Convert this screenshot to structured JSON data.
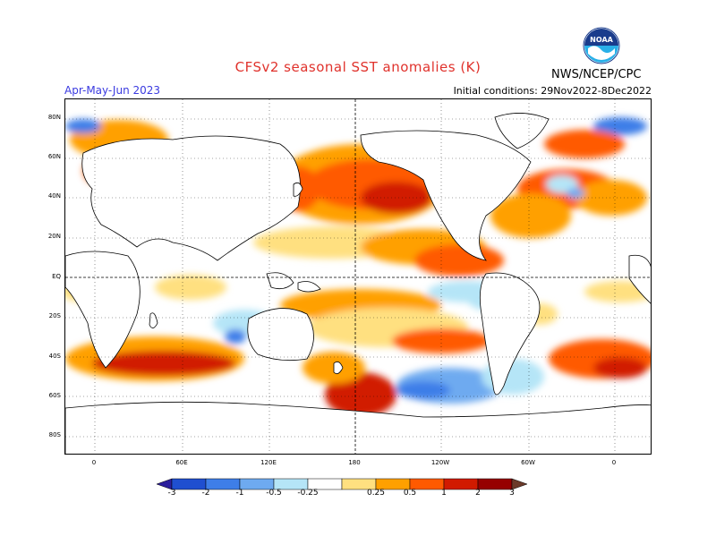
{
  "header": {
    "title": "CFSv2 seasonal SST anomalies (K)",
    "season": "Apr-May-Jun 2023",
    "initial_conditions": "Initial conditions: 29Nov2022-8Dec2022",
    "agency": "NWS/NCEP/CPC",
    "logo_text": "NOAA"
  },
  "axes": {
    "lat_labels": [
      "80N",
      "60N",
      "40N",
      "20N",
      "EQ",
      "20S",
      "40S",
      "60S",
      "80S"
    ],
    "lon_labels": [
      "0",
      "60E",
      "120E",
      "180",
      "120W",
      "60W",
      "0"
    ]
  },
  "colorbar": {
    "labels": [
      "-3",
      "-2",
      "-1",
      "-0.5",
      "-0.25",
      "0.25",
      "0.5",
      "1",
      "2",
      "3"
    ],
    "colors": [
      "#2b1e9c",
      "#1f4fd0",
      "#3e7ee8",
      "#6eaaf0",
      "#b5e5f7",
      "#ffffff",
      "#ffe080",
      "#ffa000",
      "#ff5a00",
      "#d11a00",
      "#960000",
      "#6b3a2a"
    ]
  }
}
